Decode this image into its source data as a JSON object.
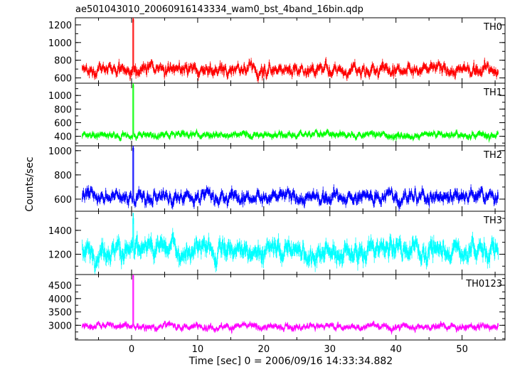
{
  "chart_data": {
    "type": "line",
    "title": "ae501043010_20060916143334_wam0_bst_4band_16bin.qdp",
    "xlabel": "Time [sec] 0 = 2006/09/16 14:33:34.882",
    "ylabel": "Counts/sec",
    "xlim": [
      -8.5,
      56.5
    ],
    "xticks": [
      0,
      10,
      20,
      30,
      40,
      50
    ],
    "x_range": [
      -7.5,
      55.5
    ],
    "grid": false,
    "panels": [
      {
        "name": "TH0",
        "color": "#ff0000",
        "ylim": [
          540,
          1280
        ],
        "yticks": [
          600,
          800,
          1000,
          1200
        ],
        "baseline": 700,
        "noise": 45,
        "error": 30,
        "peak": {
          "x": 0.2,
          "value": 1260
        }
      },
      {
        "name": "TH1",
        "color": "#00ff00",
        "ylim": [
          260,
          1180
        ],
        "yticks": [
          400,
          600,
          800,
          1000
        ],
        "baseline": 420,
        "noise": 28,
        "error": 25,
        "peak": {
          "x": 0.2,
          "value": 1150
        }
      },
      {
        "name": "TH2",
        "color": "#0000ff",
        "ylim": [
          500,
          1040
        ],
        "yticks": [
          600,
          800,
          1000
        ],
        "baseline": 620,
        "noise": 35,
        "error": 25,
        "peak": {
          "x": 0.2,
          "value": 1020
        }
      },
      {
        "name": "TH3",
        "color": "#00ffff",
        "ylim": [
          1030,
          1560
        ],
        "yticks": [
          1200,
          1400
        ],
        "baseline": 1230,
        "noise": 55,
        "error": 40,
        "peak": {
          "x": 0.2,
          "value": 1500
        }
      },
      {
        "name": "TH0123",
        "color": "#ff00ff",
        "ylim": [
          2450,
          4900
        ],
        "yticks": [
          3000,
          3500,
          4000,
          4500
        ],
        "baseline": 2950,
        "noise": 80,
        "error": 55,
        "peak": {
          "x": 0.2,
          "value": 4850
        }
      }
    ]
  }
}
